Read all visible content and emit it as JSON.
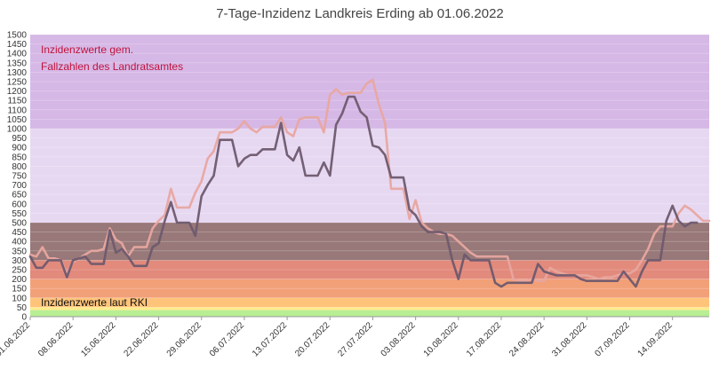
{
  "chart_data": {
    "type": "line",
    "title": "7-Tage-Inzidenz Landkreis Erding ab 01.06.2022",
    "xlabel": "",
    "ylabel": "",
    "ylim": [
      0,
      1500
    ],
    "y_ticks": [
      0,
      50,
      100,
      150,
      200,
      250,
      300,
      350,
      400,
      450,
      500,
      550,
      600,
      650,
      700,
      750,
      800,
      850,
      900,
      950,
      1000,
      1050,
      1100,
      1150,
      1200,
      1250,
      1300,
      1350,
      1400,
      1450,
      1500
    ],
    "x_start": "01.06.2022",
    "x_end": "20.09.2022",
    "x_ticks": [
      "01.06.2022",
      "08.06.2022",
      "15.06.2022",
      "22.06.2022",
      "29.06.2022",
      "06.07.2022",
      "13.07.2022",
      "20.07.2022",
      "27.07.2022",
      "03.08.2022",
      "10.08.2022",
      "17.08.2022",
      "24.08.2022",
      "31.08.2022",
      "07.09.2022",
      "14.09.2022"
    ],
    "grid": true,
    "legend": "none",
    "bands": [
      {
        "from": 0,
        "to": 35,
        "color": "#b8ee94"
      },
      {
        "from": 35,
        "to": 50,
        "color": "#ffec8c"
      },
      {
        "from": 50,
        "to": 100,
        "color": "#ffc47a"
      },
      {
        "from": 100,
        "to": 200,
        "color": "#f2a078"
      },
      {
        "from": 200,
        "to": 300,
        "color": "#e28a7c"
      },
      {
        "from": 300,
        "to": 500,
        "color": "#987878"
      },
      {
        "from": 500,
        "to": 1000,
        "color": "#e7d8f2"
      },
      {
        "from": 1000,
        "to": 1500,
        "color": "#d6b8e6"
      }
    ],
    "annotations": [
      {
        "text": "Inzidenzwerte gem.",
        "color": "#c0143c"
      },
      {
        "text": "Fallzahlen des Landratsamtes",
        "color": "#c0143c"
      },
      {
        "text": "Inzidenzwerte laut RKI",
        "color": "#111111"
      }
    ],
    "series": [
      {
        "color": "#e8a7a0",
        "values": [
          330,
          320,
          370,
          310,
          310,
          300,
          230,
          290,
          310,
          330,
          350,
          350,
          360,
          470,
          410,
          390,
          320,
          370,
          370,
          370,
          470,
          510,
          540,
          680,
          580,
          580,
          580,
          660,
          720,
          840,
          880,
          980,
          980,
          980,
          1000,
          1040,
          1000,
          980,
          1010,
          1010,
          1010,
          1060,
          980,
          960,
          1050,
          1060,
          1060,
          1060,
          980,
          1180,
          1210,
          1180,
          1190,
          1190,
          1190,
          1240,
          1260,
          1130,
          1030,
          680,
          680,
          680,
          520,
          620,
          500,
          470,
          450,
          440,
          440,
          430,
          400,
          370,
          340,
          320,
          320,
          320,
          320,
          320,
          320,
          200,
          190,
          190,
          200,
          190,
          190,
          260,
          240,
          230,
          220,
          220,
          220,
          220,
          210,
          200,
          210,
          210,
          220,
          230,
          230,
          250,
          300,
          360,
          440,
          480,
          480,
          480,
          550,
          590,
          570,
          540,
          510,
          510
        ]
      },
      {
        "color": "#6e5a6e",
        "values": [
          320,
          260,
          260,
          300,
          300,
          300,
          210,
          300,
          310,
          320,
          280,
          280,
          280,
          460,
          340,
          360,
          320,
          270,
          270,
          270,
          370,
          390,
          510,
          610,
          500,
          500,
          500,
          430,
          640,
          700,
          750,
          940,
          940,
          940,
          800,
          840,
          860,
          860,
          890,
          890,
          890,
          1030,
          860,
          830,
          900,
          750,
          750,
          750,
          820,
          750,
          1020,
          1080,
          1170,
          1170,
          1090,
          1060,
          910,
          900,
          860,
          740,
          740,
          740,
          570,
          540,
          480,
          450,
          450,
          450,
          440,
          300,
          200,
          330,
          300,
          300,
          300,
          300,
          180,
          160,
          180,
          180,
          180,
          180,
          180,
          280,
          240,
          230,
          220,
          220,
          220,
          220,
          200,
          190,
          190,
          190,
          190,
          190,
          190,
          240,
          200,
          160,
          240,
          300,
          300,
          300,
          510,
          590,
          510,
          480,
          500,
          500
        ]
      }
    ]
  }
}
